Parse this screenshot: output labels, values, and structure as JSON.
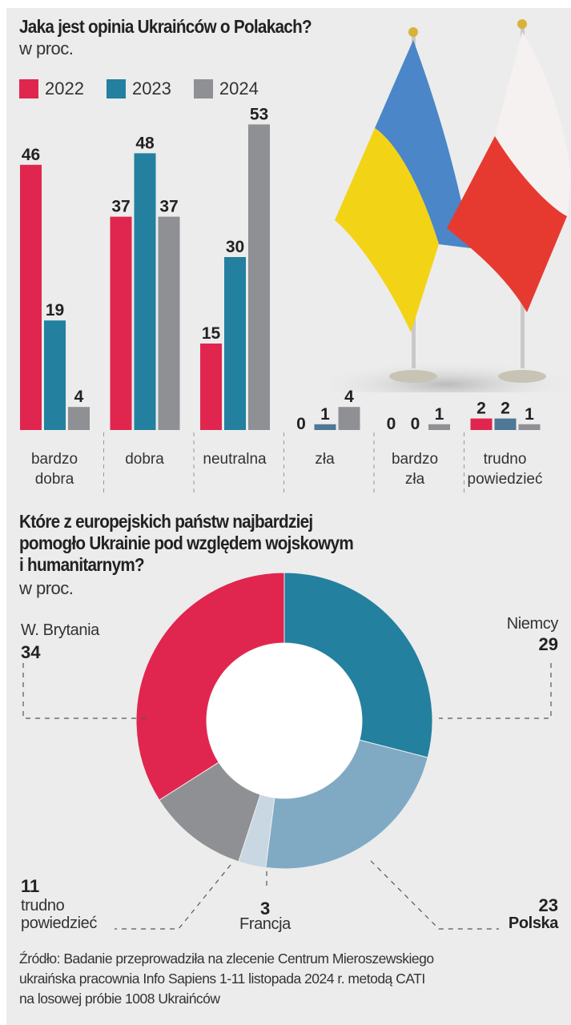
{
  "chart_data": [
    {
      "type": "bar",
      "title": "Jaka jest opinia Ukraińców o Polakach?",
      "subtitle": "w proc.",
      "categories": [
        [
          "bardzo",
          "dobra"
        ],
        [
          "dobra"
        ],
        [
          "neutralna"
        ],
        [
          "zła"
        ],
        [
          "bardzo",
          "zła"
        ],
        [
          "trudno",
          "powiedzieć"
        ]
      ],
      "series": [
        {
          "name": "2022",
          "color": "#e0264e",
          "values": [
            46,
            37,
            15,
            0,
            0,
            2
          ]
        },
        {
          "name": "2023",
          "color": "#23809f",
          "values": [
            19,
            48,
            30,
            1,
            0,
            2
          ]
        },
        {
          "name": "2024",
          "color": "#8f9094",
          "values": [
            4,
            37,
            53,
            4,
            1,
            1
          ]
        }
      ],
      "legend": "top-left",
      "grid": false,
      "data_labels": true
    },
    {
      "type": "pie",
      "donut": true,
      "title": [
        "Które z europejskich państw najbardziej",
        "pomogło Ukrainie pod względem wojskowym",
        "i humanitarnym?"
      ],
      "subtitle": "w proc.",
      "slices": [
        {
          "label": "Niemcy",
          "value": 29,
          "color": "#23809f"
        },
        {
          "label": "Polska",
          "value": 23,
          "color": "#80aac4"
        },
        {
          "label": "Francja",
          "value": 3,
          "color": "#c8d7e2"
        },
        {
          "label": [
            "trudno",
            "powiedzieć"
          ],
          "value": 11,
          "color": "#8f9094"
        },
        {
          "label": "W. Brytania",
          "value": 34,
          "color": "#e0264e"
        }
      ]
    }
  ],
  "source": [
    "Źródło: Badanie przeprowadziła na zlecenie Centrum Mieroszewskiego",
    "ukraińska pracownia Info Sapiens 1-11 listopada 2024 r. metodą CATI",
    "na losowej próbie 1008 Ukraińców"
  ],
  "photo": {
    "icon": "ukraine-poland-table-flags"
  }
}
